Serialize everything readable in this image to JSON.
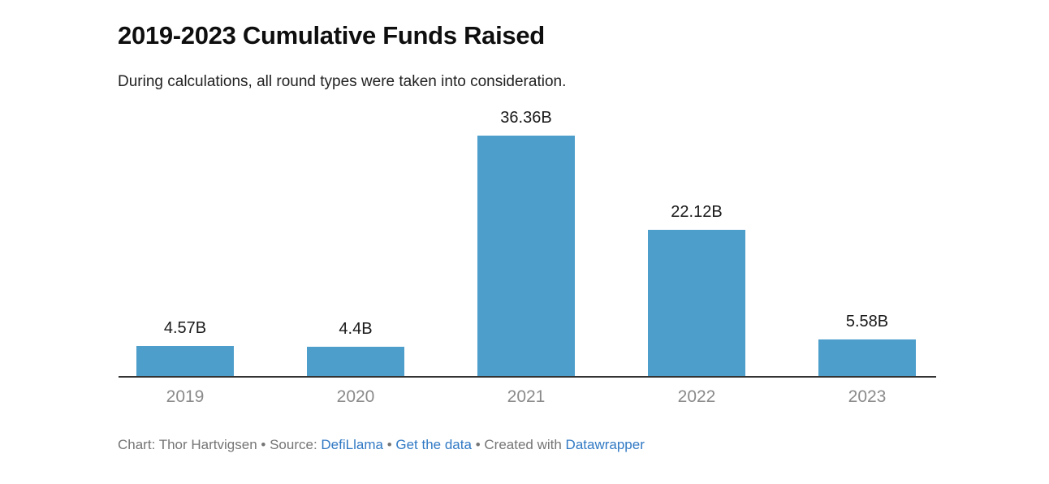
{
  "header": {
    "title": "2019-2023 Cumulative Funds Raised",
    "subtitle": "During calculations, all round types were taken into consideration."
  },
  "chart_data": {
    "type": "bar",
    "categories": [
      "2019",
      "2020",
      "2021",
      "2022",
      "2023"
    ],
    "values": [
      4.57,
      4.4,
      36.36,
      22.12,
      5.58
    ],
    "value_labels": [
      "4.57B",
      "4.4B",
      "36.36B",
      "22.12B",
      "5.58B"
    ],
    "title": "2019-2023 Cumulative Funds Raised",
    "xlabel": "",
    "ylabel": "",
    "ylim": [
      0,
      40
    ],
    "grid": false,
    "legend": false,
    "bar_color": "#4d9ecb",
    "axis_line_color": "#333333",
    "tick_label_color": "#8a8a8a",
    "value_label_color": "#1a1a1a"
  },
  "footer": {
    "chart_credit": "Chart: Thor Hartvigsen",
    "separator": "•",
    "source_label": "Source:",
    "source_link": "DefiLlama",
    "get_data_link": "Get the data",
    "created_with_label": "Created with",
    "created_with_link": "Datawrapper",
    "link_color": "#3179c4"
  }
}
